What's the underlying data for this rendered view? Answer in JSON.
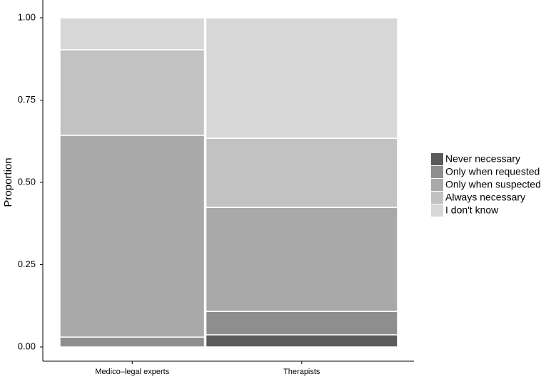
{
  "chart_data": {
    "type": "mosaic",
    "y_label": "Proportion",
    "categories": [
      "Medico–legal experts",
      "Therapists"
    ],
    "widths": [
      0.43,
      0.57
    ],
    "series": [
      {
        "name": "Never necessary",
        "color": "#5a5a5a",
        "values": [
          0,
          0.037
        ]
      },
      {
        "name": "Only when requested",
        "color": "#8e8e8e",
        "values": [
          0.03,
          0.071
        ]
      },
      {
        "name": "Only when suspected",
        "color": "#a9a9a9",
        "values": [
          0.613,
          0.316
        ]
      },
      {
        "name": "Always necessary",
        "color": "#c2c2c2",
        "values": [
          0.26,
          0.21
        ]
      },
      {
        "name": "I don't know",
        "color": "#d7d7d7",
        "values": [
          0.097,
          0.366
        ]
      }
    ],
    "ylim": [
      0,
      1
    ],
    "yticks": [
      {
        "value": 0,
        "label": "0.00"
      },
      {
        "value": 0.25,
        "label": "0.25"
      },
      {
        "value": 0.5,
        "label": "0.50"
      },
      {
        "value": 0.75,
        "label": "0.75"
      },
      {
        "value": 1,
        "label": "1.00"
      }
    ]
  }
}
